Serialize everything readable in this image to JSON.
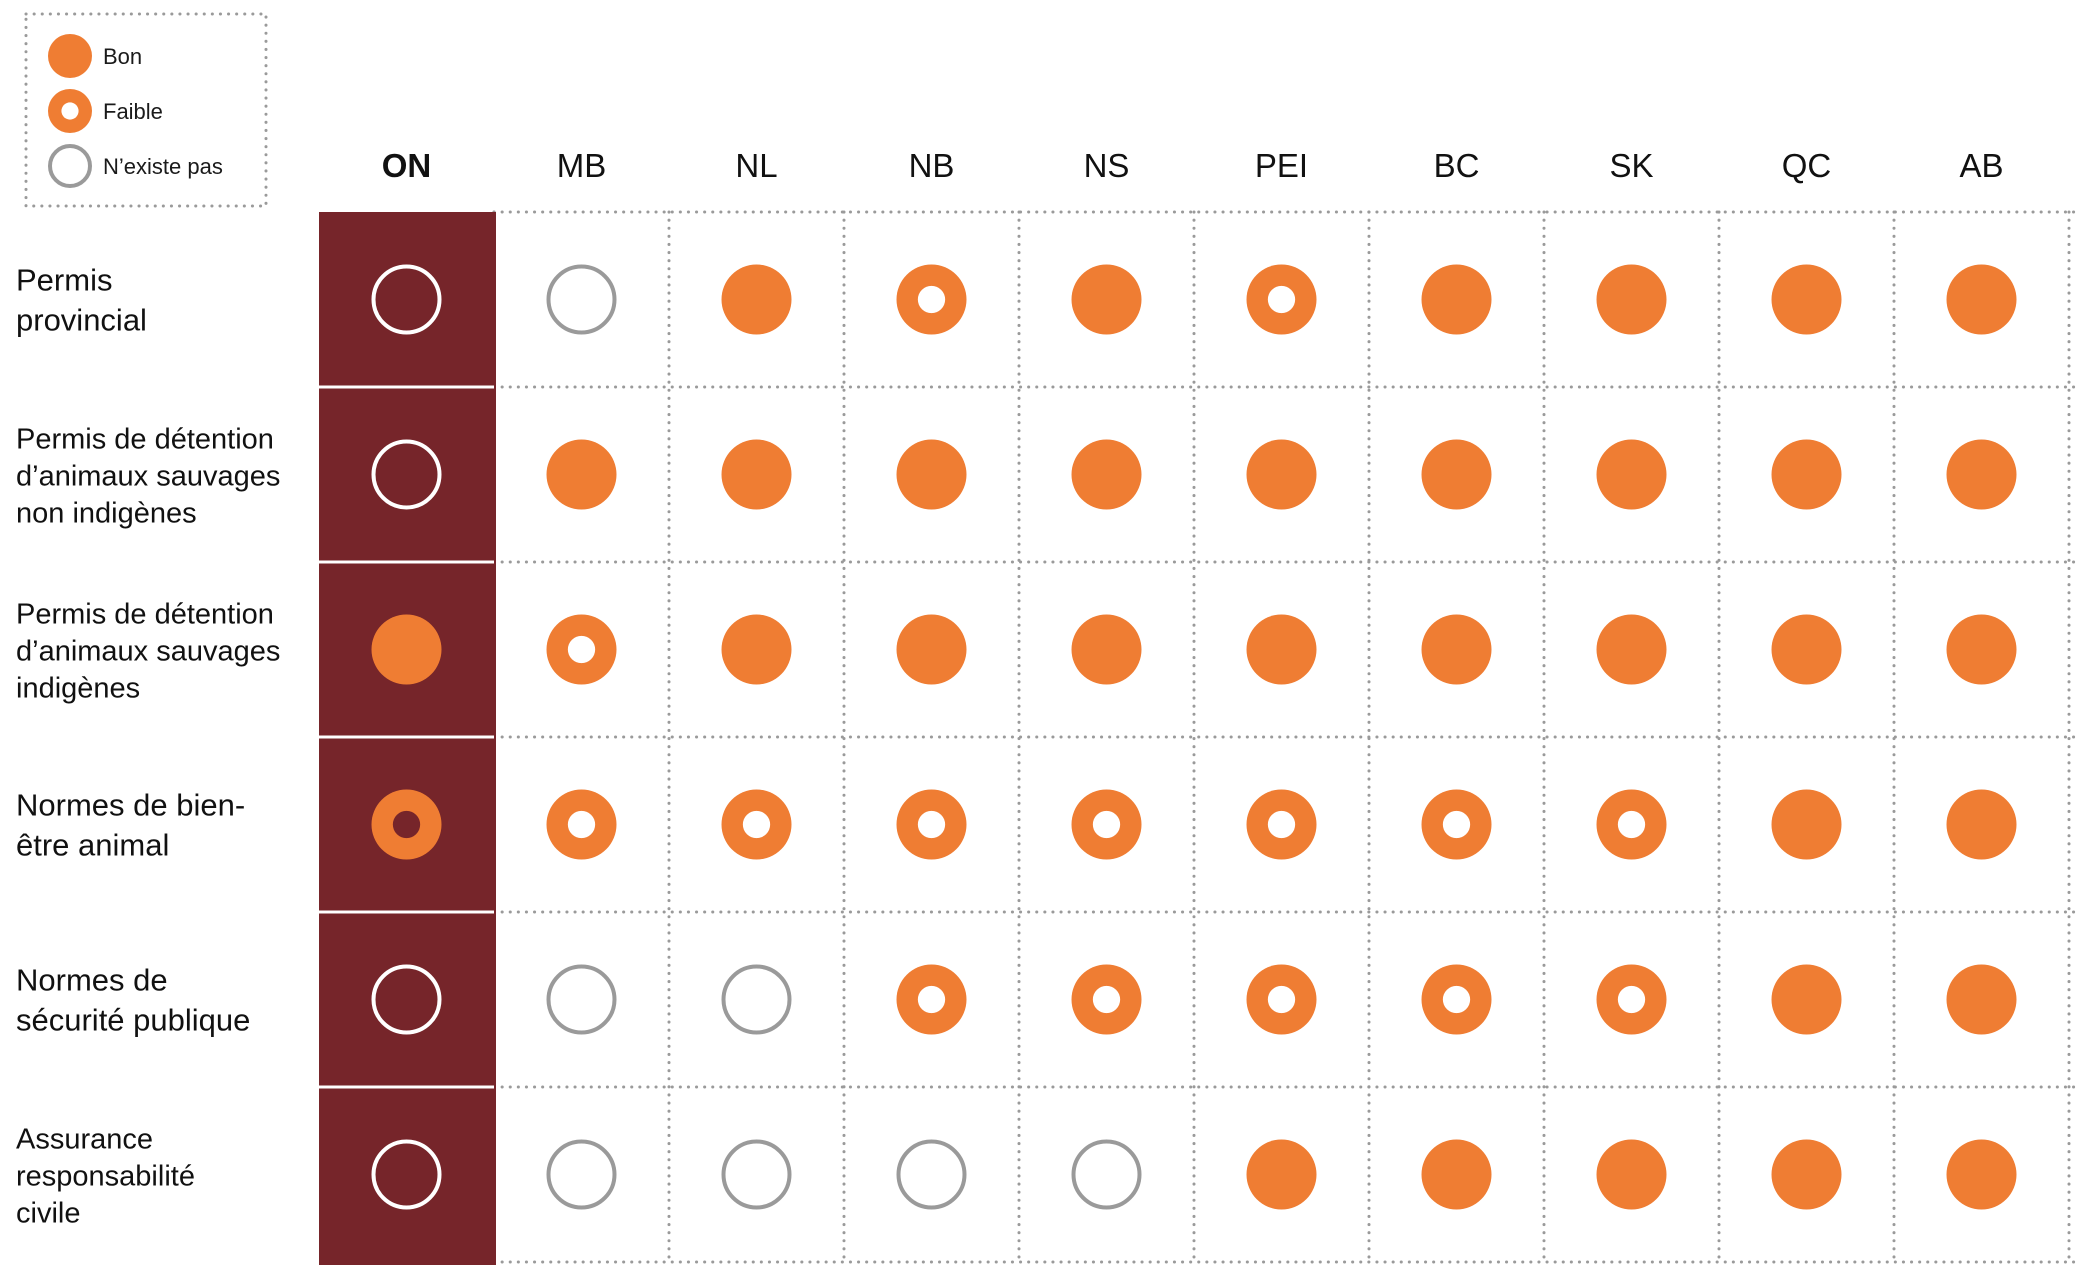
{
  "chart_data": {
    "type": "table",
    "legend": [
      {
        "status": "good",
        "label": "Bon"
      },
      {
        "status": "weak",
        "label": "Faible"
      },
      {
        "status": "none",
        "label": "N’existe pas"
      }
    ],
    "columns": [
      "ON",
      "MB",
      "NL",
      "NB",
      "NS",
      "PEI",
      "BC",
      "SK",
      "QC",
      "AB"
    ],
    "highlight_column": "ON",
    "rows": [
      {
        "label_lines": [
          "Permis",
          "provincial"
        ],
        "values": [
          "none",
          "none",
          "good",
          "weak",
          "good",
          "weak",
          "good",
          "good",
          "good",
          "good"
        ]
      },
      {
        "label_lines": [
          "Permis de détention",
          "d’animaux sauvages",
          "non indigènes"
        ],
        "values": [
          "none",
          "good",
          "good",
          "good",
          "good",
          "good",
          "good",
          "good",
          "good",
          "good"
        ]
      },
      {
        "label_lines": [
          "Permis de détention",
          "d’animaux sauvages",
          "indigènes"
        ],
        "values": [
          "good",
          "weak",
          "good",
          "good",
          "good",
          "good",
          "good",
          "good",
          "good",
          "good"
        ]
      },
      {
        "label_lines": [
          "Normes de bien-",
          "être animal"
        ],
        "values": [
          "weak",
          "weak",
          "weak",
          "weak",
          "weak",
          "weak",
          "weak",
          "weak",
          "good",
          "good"
        ]
      },
      {
        "label_lines": [
          "Normes de",
          "sécurité publique"
        ],
        "values": [
          "none",
          "none",
          "none",
          "weak",
          "weak",
          "weak",
          "weak",
          "weak",
          "good",
          "good"
        ]
      },
      {
        "label_lines": [
          "Assurance",
          "responsabilité",
          "civile"
        ],
        "values": [
          "none",
          "none",
          "none",
          "none",
          "none",
          "good",
          "good",
          "good",
          "good",
          "good"
        ]
      }
    ]
  },
  "colors": {
    "orange": "#ef7d33",
    "highlight_bg": "#76252a",
    "none_stroke": "#9a9a9a",
    "none_stroke_highlight": "#ffffff",
    "grid_dots": "#9a9a9a"
  }
}
